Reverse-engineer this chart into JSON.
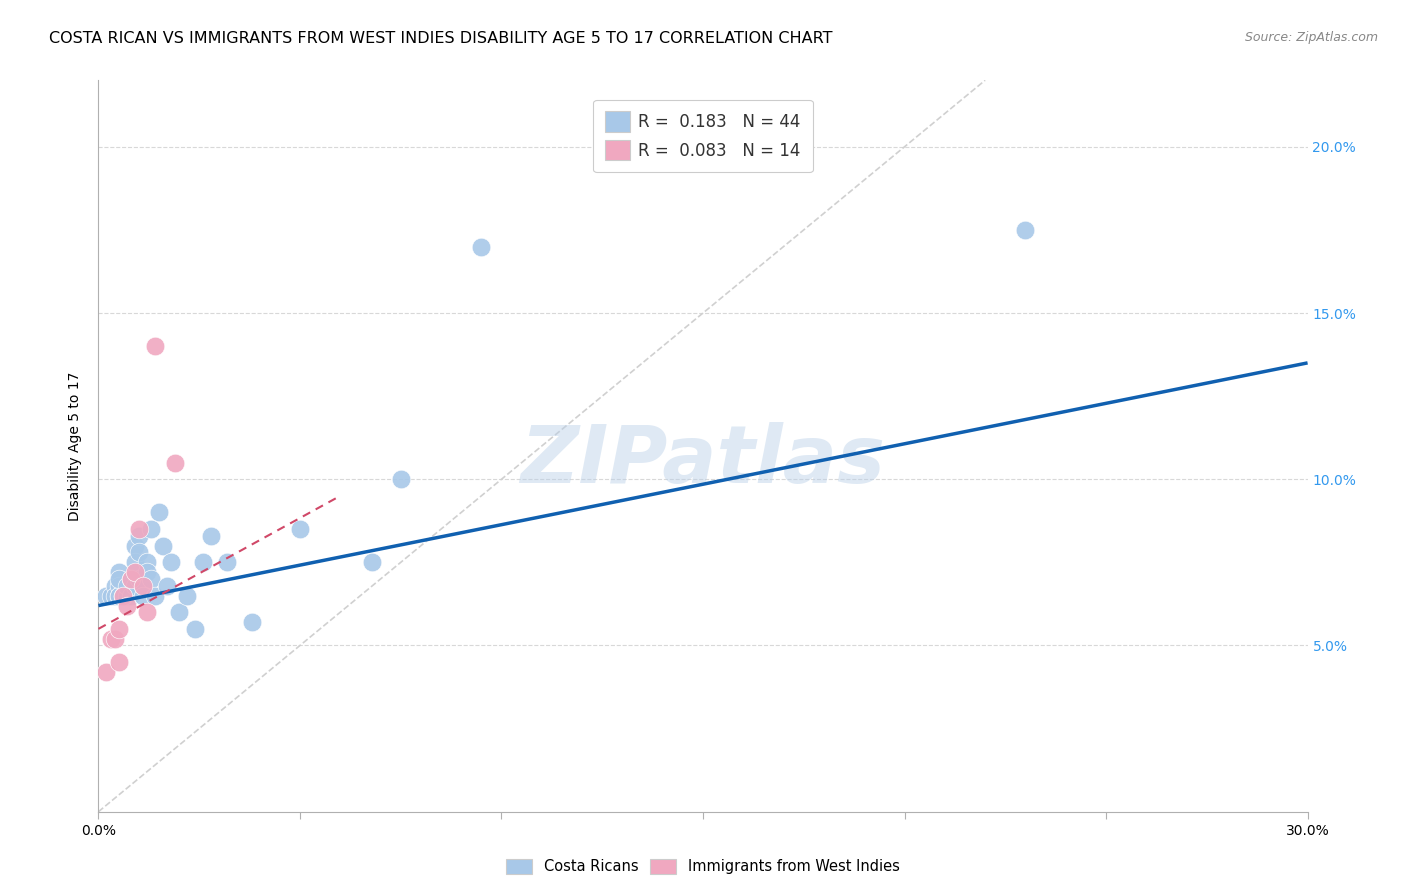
{
  "title": "COSTA RICAN VS IMMIGRANTS FROM WEST INDIES DISABILITY AGE 5 TO 17 CORRELATION CHART",
  "source": "Source: ZipAtlas.com",
  "ylabel": "Disability Age 5 to 17",
  "xlim": [
    0.0,
    0.3
  ],
  "ylim": [
    0.0,
    0.22
  ],
  "xticks": [
    0.0,
    0.05,
    0.1,
    0.15,
    0.2,
    0.25,
    0.3
  ],
  "xtick_labels": [
    "0.0%",
    "",
    "",
    "",
    "",
    "",
    "30.0%"
  ],
  "yticks": [
    0.05,
    0.1,
    0.15,
    0.2
  ],
  "ytick_labels_right": [
    "5.0%",
    "10.0%",
    "15.0%",
    "20.0%"
  ],
  "blue_R": 0.183,
  "blue_N": 44,
  "pink_R": 0.083,
  "pink_N": 14,
  "blue_color": "#a8c8e8",
  "pink_color": "#f0a8c0",
  "blue_line_color": "#1060b0",
  "pink_line_color": "#d04868",
  "diagonal_line_color": "#d0d0d0",
  "watermark": "ZIPatlas",
  "blue_scatter_x": [
    0.002,
    0.003,
    0.004,
    0.004,
    0.005,
    0.005,
    0.005,
    0.005,
    0.005,
    0.006,
    0.006,
    0.007,
    0.007,
    0.008,
    0.008,
    0.009,
    0.009,
    0.009,
    0.01,
    0.01,
    0.01,
    0.011,
    0.011,
    0.012,
    0.012,
    0.013,
    0.013,
    0.014,
    0.015,
    0.016,
    0.017,
    0.018,
    0.02,
    0.022,
    0.024,
    0.026,
    0.028,
    0.032,
    0.038,
    0.05,
    0.068,
    0.075,
    0.095,
    0.23
  ],
  "blue_scatter_y": [
    0.065,
    0.065,
    0.068,
    0.065,
    0.072,
    0.068,
    0.065,
    0.065,
    0.07,
    0.065,
    0.065,
    0.065,
    0.068,
    0.07,
    0.065,
    0.08,
    0.075,
    0.068,
    0.083,
    0.078,
    0.07,
    0.068,
    0.065,
    0.075,
    0.072,
    0.085,
    0.07,
    0.065,
    0.09,
    0.08,
    0.068,
    0.075,
    0.06,
    0.065,
    0.055,
    0.075,
    0.083,
    0.075,
    0.057,
    0.085,
    0.075,
    0.1,
    0.17,
    0.175
  ],
  "pink_scatter_x": [
    0.002,
    0.003,
    0.004,
    0.005,
    0.005,
    0.006,
    0.007,
    0.008,
    0.009,
    0.01,
    0.011,
    0.012,
    0.014,
    0.019
  ],
  "pink_scatter_y": [
    0.042,
    0.052,
    0.052,
    0.055,
    0.045,
    0.065,
    0.062,
    0.07,
    0.072,
    0.085,
    0.068,
    0.06,
    0.14,
    0.105
  ],
  "blue_line_x": [
    0.0,
    0.3
  ],
  "blue_line_y": [
    0.062,
    0.135
  ],
  "pink_line_x": [
    0.0,
    0.06
  ],
  "pink_line_y": [
    0.055,
    0.095
  ],
  "diag_line_x": [
    0.0,
    0.22
  ],
  "diag_line_y": [
    0.0,
    0.22
  ],
  "background_color": "#ffffff",
  "grid_color": "#d8d8d8",
  "title_fontsize": 11.5,
  "axis_fontsize": 10,
  "tick_fontsize": 10,
  "legend_fontsize": 12
}
